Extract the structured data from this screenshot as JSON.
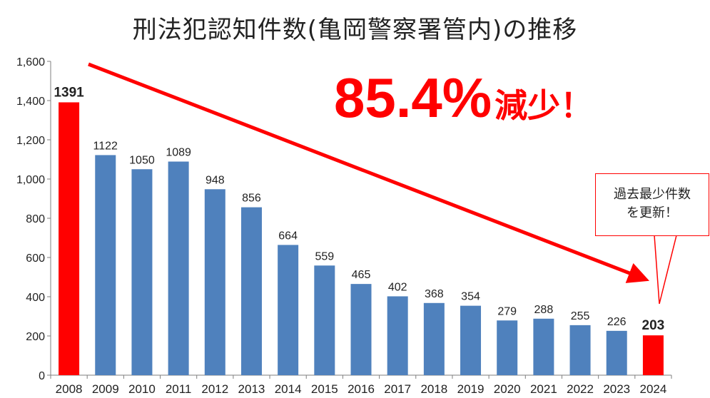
{
  "chart_data": {
    "type": "bar",
    "title": "刑法犯認知件数(亀岡警察署管内)の推移",
    "categories": [
      "2008",
      "2009",
      "2010",
      "2011",
      "2012",
      "2013",
      "2014",
      "2015",
      "2016",
      "2017",
      "2018",
      "2019",
      "2020",
      "2021",
      "2022",
      "2023",
      "2024"
    ],
    "values": [
      1391,
      1122,
      1050,
      1089,
      948,
      856,
      664,
      559,
      465,
      402,
      368,
      354,
      279,
      288,
      255,
      226,
      203
    ],
    "value_labels": [
      "1391",
      "1122",
      "1050",
      "1089",
      "948",
      "856",
      "664",
      "559",
      "465",
      "402",
      "368",
      "354",
      "279",
      "288",
      "255",
      "226",
      "203"
    ],
    "highlighted_categories": [
      "2008",
      "2024"
    ],
    "ylim": [
      0,
      1600
    ],
    "yticks": [
      0,
      200,
      400,
      600,
      800,
      1000,
      1200,
      1400,
      1600
    ],
    "ytick_labels": [
      "0",
      "200",
      "400",
      "600",
      "800",
      "1,000",
      "1,200",
      "1,400",
      "1,600"
    ],
    "xlabel": "",
    "ylabel": "",
    "grid": false,
    "annotations": {
      "headline_number": "85.4%",
      "headline_word": "減少！",
      "callout_line1": "過去最少件数",
      "callout_line2": "を更新！"
    }
  },
  "colors": {
    "bar": "#4f81bd",
    "highlight": "#ff0000",
    "axis": "#7f7f7f",
    "text": "#222222"
  }
}
